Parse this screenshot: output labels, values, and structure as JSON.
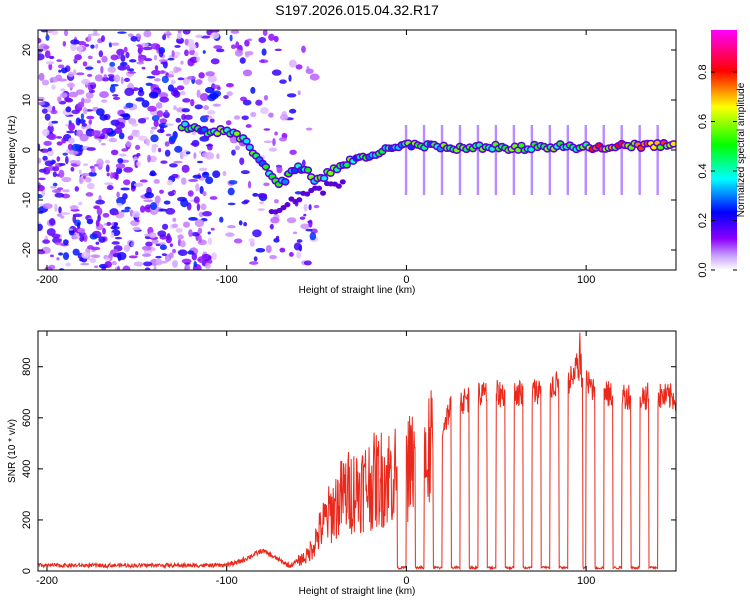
{
  "title": "S197.2026.015.04.32.R17",
  "chart_data": [
    {
      "type": "heatmap",
      "title": "S197.2026.015.04.32.R17",
      "xlabel": "Height of straight line (km)",
      "ylabel": "Frequency (Hz)",
      "xlim": [
        -205,
        150
      ],
      "ylim": [
        -24,
        24
      ],
      "xticks": [
        -200,
        -100,
        0,
        100
      ],
      "yticks": [
        -20,
        -10,
        0,
        10,
        20
      ],
      "colorbar": {
        "label": "Normalized spectral amplitude",
        "range": [
          0,
          0.97
        ],
        "ticks": [
          0.0,
          0.2,
          0.4,
          0.6,
          0.8
        ],
        "tick_labels": [
          "0.0",
          "0.2",
          "0.4",
          "0.6",
          "0.8"
        ],
        "colormap": [
          "#ffffff",
          "#8b00ff",
          "#0000ff",
          "#00ffff",
          "#00ff00",
          "#ffff00",
          "#ff0000",
          "#ff00ff"
        ]
      },
      "carrier_line": [
        {
          "x": -125,
          "y": 5
        },
        {
          "x": -110,
          "y": 3.5
        },
        {
          "x": -100,
          "y": 4
        },
        {
          "x": -90,
          "y": 2
        },
        {
          "x": -80,
          "y": -3
        },
        {
          "x": -70,
          "y": -7
        },
        {
          "x": -60,
          "y": -3
        },
        {
          "x": -50,
          "y": -6
        },
        {
          "x": -40,
          "y": -4
        },
        {
          "x": -30,
          "y": -2
        },
        {
          "x": -20,
          "y": -1
        },
        {
          "x": -10,
          "y": 0
        },
        {
          "x": 0,
          "y": 1
        },
        {
          "x": 20,
          "y": 0.5
        },
        {
          "x": 60,
          "y": 0.5
        },
        {
          "x": 100,
          "y": 0.7
        },
        {
          "x": 150,
          "y": 1
        }
      ]
    },
    {
      "type": "line",
      "xlabel": "Height of straight line (km)",
      "ylabel": "SNR (10 * v/v)",
      "xlim": [
        -205,
        150
      ],
      "ylim": [
        0,
        940
      ],
      "xticks": [
        -200,
        -100,
        0,
        100
      ],
      "yticks": [
        0,
        200,
        400,
        600,
        800
      ],
      "color": "#e8291c",
      "envelope": [
        {
          "x": -205,
          "y": 20
        },
        {
          "x": -110,
          "y": 22
        },
        {
          "x": -95,
          "y": 30
        },
        {
          "x": -80,
          "y": 80
        },
        {
          "x": -65,
          "y": 20
        },
        {
          "x": -55,
          "y": 60
        },
        {
          "x": -45,
          "y": 200
        },
        {
          "x": -35,
          "y": 300
        },
        {
          "x": -25,
          "y": 330
        },
        {
          "x": -15,
          "y": 360
        },
        {
          "x": 0,
          "y": 400
        },
        {
          "x": 15,
          "y": 470
        },
        {
          "x": 25,
          "y": 650
        },
        {
          "x": 40,
          "y": 690
        },
        {
          "x": 70,
          "y": 700
        },
        {
          "x": 95,
          "y": 760
        },
        {
          "x": 110,
          "y": 690
        },
        {
          "x": 150,
          "y": 680
        }
      ],
      "dropouts_x": [
        -5,
        5,
        15,
        25,
        35,
        45,
        55,
        65,
        75,
        85,
        95,
        105,
        115,
        125,
        135
      ]
    }
  ]
}
